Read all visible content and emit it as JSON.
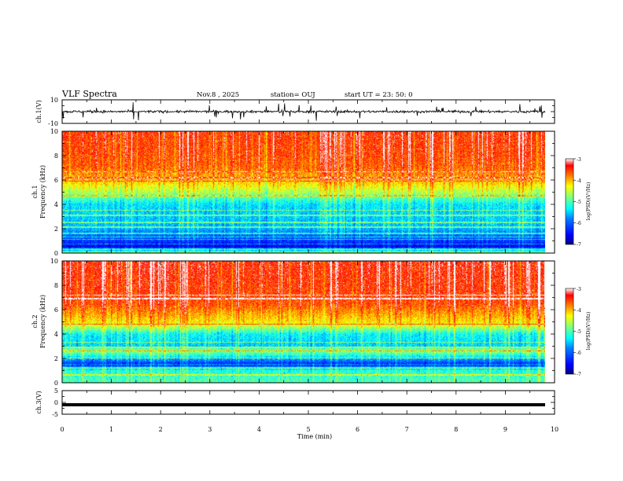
{
  "header": {
    "title": "VLF Spectra",
    "date": "Nov.8 , 2025",
    "station": "station= OUJ",
    "start": "start UT = 23: 50: 0"
  },
  "colors": {
    "background": "#ffffff",
    "axes": "#000000",
    "colormap": [
      "#00007f",
      "#0000ff",
      "#0080ff",
      "#00ffff",
      "#80ff80",
      "#ffff00",
      "#ff8000",
      "#ff0000",
      "#ffffff"
    ]
  },
  "chart_data": [
    {
      "type": "line",
      "name": "ch1-waveform",
      "ylabel": "ch.1(V)",
      "ylim": [
        -10,
        10
      ],
      "yticks": [
        "10",
        "-10"
      ],
      "xlim": [
        0,
        10
      ],
      "description_values": {
        "baseline": 0,
        "noise_amplitude_v": 2,
        "spike_amplitude_v": 7
      }
    },
    {
      "type": "heatmap",
      "name": "ch1-spectrogram",
      "ylabel": "ch.1",
      "ylabel2": "Frequency (kHz)",
      "ylim": [
        0,
        10
      ],
      "yticks": [
        "0",
        "2",
        "4",
        "6",
        "8",
        "10"
      ],
      "xlim": [
        0,
        9.85
      ],
      "colorbar": {
        "label": "log(PSD)(V²/Hz)",
        "range": [
          -7,
          -3
        ],
        "ticks": [
          "-3",
          "-4",
          "-5",
          "-6",
          "-7"
        ]
      },
      "profile_log_psd": [
        [
          0,
          -4.8
        ],
        [
          0.5,
          -6.6
        ],
        [
          1,
          -6.2
        ],
        [
          2,
          -5.6
        ],
        [
          3,
          -5.5
        ],
        [
          4,
          -5.4
        ],
        [
          5,
          -4.6
        ],
        [
          6,
          -4.0
        ],
        [
          7,
          -3.7
        ],
        [
          8,
          -3.6
        ],
        [
          10,
          -3.5
        ]
      ],
      "lines_khz": [
        0.3,
        0.7,
        1.1,
        1.3,
        1.6,
        2.1,
        2.5,
        3.1,
        3.5,
        4.7,
        5.9,
        6.2,
        6.7
      ]
    },
    {
      "type": "heatmap",
      "name": "ch2-spectrogram",
      "ylabel": "ch.2",
      "ylabel2": "Frequency (kHz)",
      "ylim": [
        0,
        10
      ],
      "yticks": [
        "0",
        "2",
        "4",
        "6",
        "8",
        "10"
      ],
      "xlim": [
        0,
        9.85
      ],
      "colorbar": {
        "label": "log(PSD)(V²/Hz)",
        "range": [
          -7,
          -3
        ],
        "ticks": [
          "-3",
          "-4",
          "-5",
          "-6",
          "-7"
        ]
      },
      "profile_log_psd": [
        [
          0,
          -5.0
        ],
        [
          0.5,
          -5.1
        ],
        [
          1,
          -5.2
        ],
        [
          1.5,
          -6.4
        ],
        [
          2,
          -5.5
        ],
        [
          2.6,
          -4.7
        ],
        [
          3,
          -5.5
        ],
        [
          4,
          -5.3
        ],
        [
          4.8,
          -4.3
        ],
        [
          5.5,
          -4.0
        ],
        [
          6.5,
          -3.6
        ],
        [
          8,
          -3.5
        ],
        [
          10,
          -3.4
        ]
      ],
      "lines_khz": [
        0.6,
        1.2,
        1.5,
        2.0,
        2.6,
        2.9,
        3.3,
        4.8,
        6.9,
        7.2
      ]
    },
    {
      "type": "line",
      "name": "ch3-waveform",
      "ylabel": "ch.3(V)",
      "ylim": [
        -5,
        5
      ],
      "yticks": [
        "5",
        "0",
        "-5"
      ],
      "xlim": [
        0,
        10
      ],
      "description_values": {
        "level_v": -1
      }
    }
  ],
  "xaxis": {
    "label": "Time (min)",
    "ticks": [
      "0",
      "1",
      "2",
      "3",
      "4",
      "5",
      "6",
      "7",
      "8",
      "9",
      "10"
    ],
    "range": [
      0,
      10
    ]
  }
}
